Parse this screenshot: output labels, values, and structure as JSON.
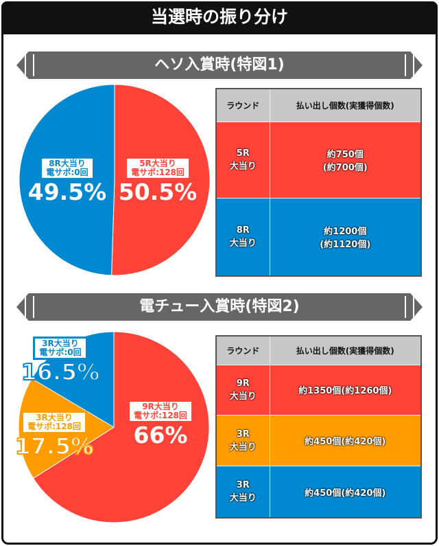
{
  "title": "当選時の振り分け",
  "colors": {
    "red": "#ff4339",
    "blue": "#0088d0",
    "orange": "#ff9c00"
  },
  "section1": {
    "heading": "ヘソ入賞時(特図1)",
    "pie": [
      {
        "label1": "5R大当り",
        "label2": "電サポ:128回",
        "percent": "50.5%",
        "value": 50.5,
        "color": "#ff4339"
      },
      {
        "label1": "8R大当り",
        "label2": "電サポ:0回",
        "percent": "49.5%",
        "value": 49.5,
        "color": "#0088d0"
      }
    ],
    "table": {
      "headers": [
        "ラウンド",
        "払い出し個数(実獲得個数)"
      ],
      "rows": [
        {
          "round1": "5R",
          "round2": "大当り",
          "pay1": "約750個",
          "pay2": "(約700個)"
        },
        {
          "round1": "8R",
          "round2": "大当り",
          "pay1": "約1200個",
          "pay2": "(約1120個)"
        }
      ]
    }
  },
  "section2": {
    "heading": "電チュー入賞時(特図2)",
    "pie": [
      {
        "label1": "9R大当り",
        "label2": "電サポ:128回",
        "percent": "66%",
        "value": 66,
        "color": "#ff4339"
      },
      {
        "label1": "3R大当り",
        "label2": "電サポ:128回",
        "percent": "17.5%",
        "value": 17.5,
        "color": "#ff9c00"
      },
      {
        "label1": "3R大当り",
        "label2": "電サポ:0回",
        "percent": "16.5%",
        "value": 16.5,
        "color": "#0088d0"
      }
    ],
    "table": {
      "headers": [
        "ラウンド",
        "払い出し個数(実獲得個数)"
      ],
      "rows": [
        {
          "round1": "9R",
          "round2": "大当り",
          "pay1": "約1350個(約1260個)"
        },
        {
          "round1": "3R",
          "round2": "大当り",
          "pay1": "約450個(約420個)"
        },
        {
          "round1": "3R",
          "round2": "大当り",
          "pay1": "約450個(約420個)"
        }
      ]
    }
  }
}
